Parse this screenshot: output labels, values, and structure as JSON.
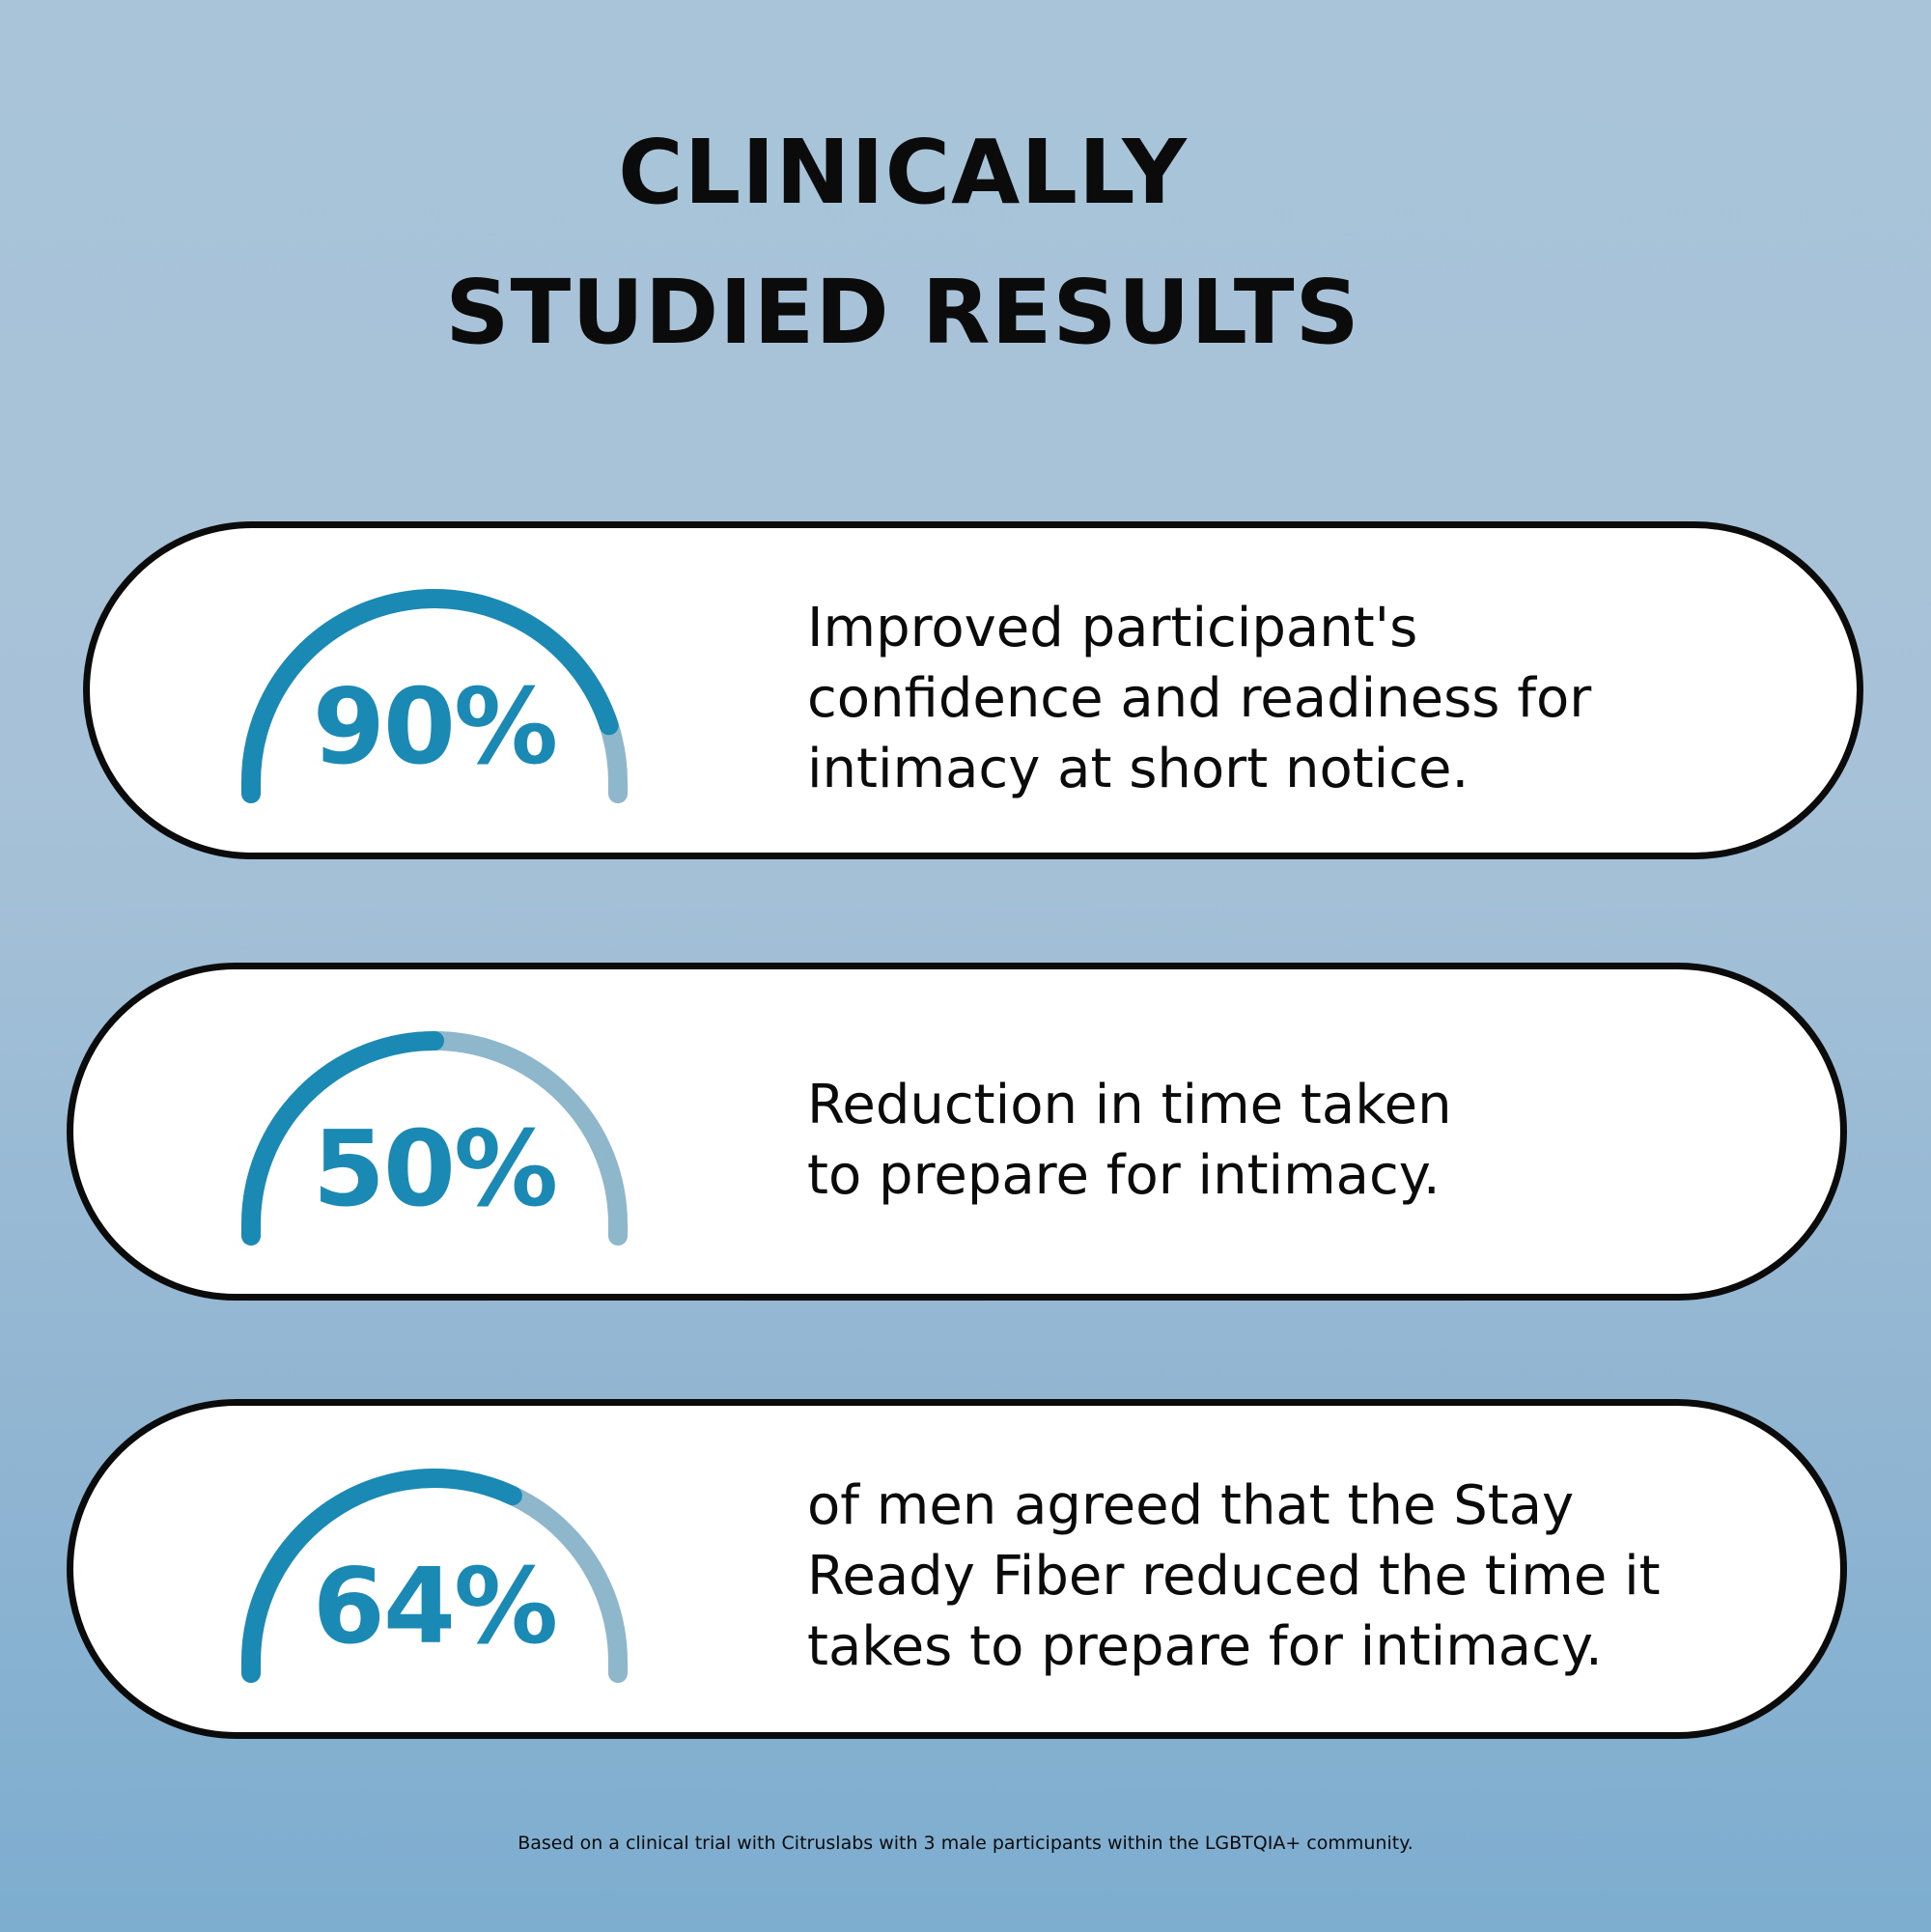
{
  "title": {
    "line1": "CLINICALLY",
    "line2": "STUDIED RESULTS"
  },
  "colors": {
    "accent": "#1a8ab5",
    "track": "#8fb7cc",
    "outline": "#0b0b0b",
    "card": "#ffffff"
  },
  "stats": [
    {
      "value": "90%",
      "fraction": 0.9,
      "description_lines": [
        "Improved participant's",
        "confidence and readiness for",
        "intimacy at short notice."
      ]
    },
    {
      "value": "50%",
      "fraction": 0.5,
      "description_lines": [
        "Reduction in time taken",
        "to prepare for intimacy."
      ]
    },
    {
      "value": "64%",
      "fraction": 0.64,
      "description_lines": [
        "of men agreed that the Stay",
        "Ready Fiber reduced the time it",
        "takes to prepare for intimacy."
      ]
    }
  ],
  "footnote": "Based on a clinical trial with Citruslabs with 3 male participants within the LGBTQIA+ community."
}
